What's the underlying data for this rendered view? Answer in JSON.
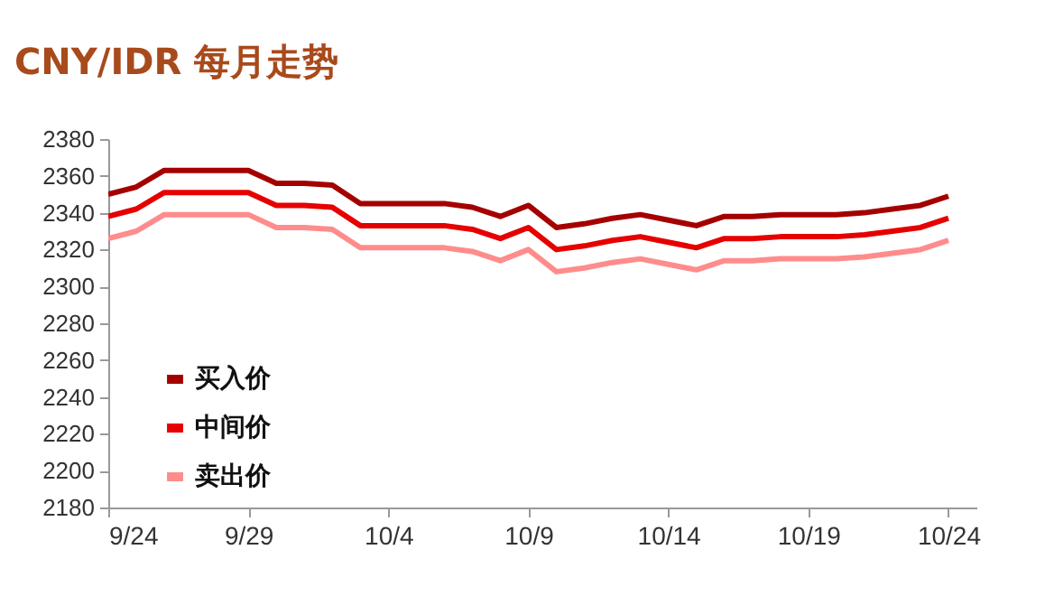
{
  "chart_data": {
    "type": "line",
    "title": "CNY/IDR 每月走势",
    "x": [
      "--09-24",
      "--09-25",
      "--09-26",
      "--09-27",
      "--09-28",
      "--09-29",
      "--09-30",
      "--10-01",
      "--10-02",
      "--10-03",
      "--10-04",
      "--10-05",
      "--10-06",
      "--10-07",
      "--10-08",
      "--10-09",
      "--10-10",
      "--10-11",
      "--10-12",
      "--10-13",
      "--10-14",
      "--10-15",
      "--10-16",
      "--10-17",
      "--10-18",
      "--10-19",
      "--10-20",
      "--10-21",
      "--10-22",
      "--10-23",
      "--10-24"
    ],
    "series": [
      {
        "name": "买入价",
        "color": "#a50000",
        "values": [
          2350,
          2354,
          2363,
          2363,
          2363,
          2363,
          2356,
          2356,
          2355,
          2345,
          2345,
          2345,
          2345,
          2343,
          2338,
          2344,
          2332,
          2334,
          2337,
          2339,
          2336,
          2333,
          2338,
          2338,
          2339,
          2339,
          2339,
          2340,
          2342,
          2344,
          2349
        ]
      },
      {
        "name": "中间价",
        "color": "#e60000",
        "values": [
          2338,
          2342,
          2351,
          2351,
          2351,
          2351,
          2344,
          2344,
          2343,
          2333,
          2333,
          2333,
          2333,
          2331,
          2326,
          2332,
          2320,
          2322,
          2325,
          2327,
          2324,
          2321,
          2326,
          2326,
          2327,
          2327,
          2327,
          2328,
          2330,
          2332,
          2337
        ]
      },
      {
        "name": "卖出价",
        "color": "#ff8c8c",
        "values": [
          2326,
          2330,
          2339,
          2339,
          2339,
          2339,
          2332,
          2332,
          2331,
          2321,
          2321,
          2321,
          2321,
          2319,
          2314,
          2320,
          2308,
          2310,
          2313,
          2315,
          2312,
          2309,
          2314,
          2314,
          2315,
          2315,
          2315,
          2316,
          2318,
          2320,
          2325
        ]
      }
    ],
    "xlim": [
      "--09-24",
      "--10-25"
    ],
    "xticks": [
      {
        "value": "--09-24",
        "label": "9/24"
      },
      {
        "value": "--09-29",
        "label": "9/29"
      },
      {
        "value": "--10-04",
        "label": "10/4"
      },
      {
        "value": "--10-09",
        "label": "10/9"
      },
      {
        "value": "--10-14",
        "label": "10/14"
      },
      {
        "value": "--10-19",
        "label": "10/19"
      },
      {
        "value": "--10-24",
        "label": "10/24"
      }
    ],
    "ylim": [
      2180,
      2380
    ],
    "yticks": [
      2180,
      2200,
      2220,
      2240,
      2260,
      2280,
      2300,
      2320,
      2340,
      2360,
      2380
    ],
    "grid": false,
    "legend": "bottom left",
    "line_style": "solid"
  }
}
